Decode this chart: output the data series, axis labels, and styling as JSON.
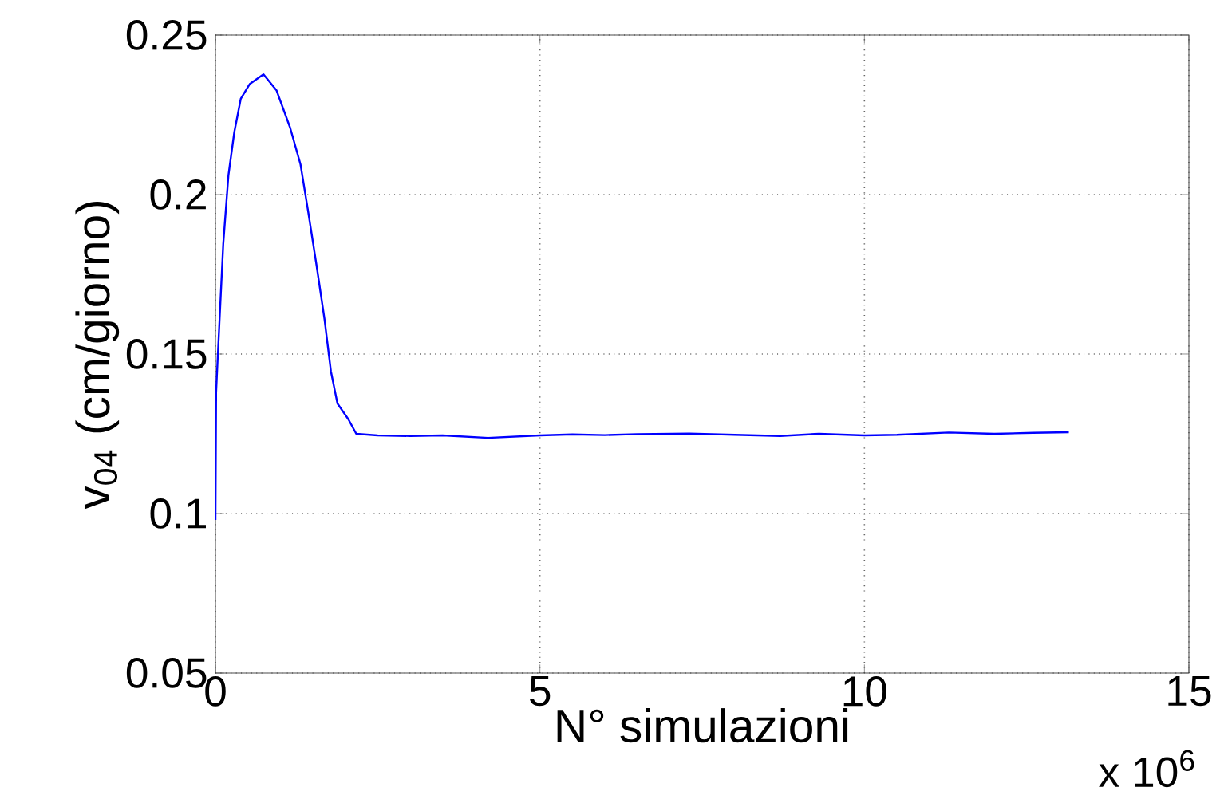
{
  "chart_data": {
    "type": "line",
    "xlabel": "N° simulazioni",
    "ylabel": "v$_{04}$ (cm/giorno)",
    "annotations": [
      "x 10$^{6}$"
    ],
    "xlim": [
      0,
      15
    ],
    "xticks": [
      0,
      5,
      10,
      15
    ],
    "ylim": [
      0.05,
      0.25
    ],
    "yticks": [
      0.05,
      0.1,
      0.15,
      0.2,
      0.25
    ],
    "grid": true,
    "line_style": "solid",
    "marker": "none",
    "series": [
      {
        "color": "#0000ff",
        "x": [
          0,
          0.01,
          0.04,
          0.12,
          0.2,
          0.29,
          0.39,
          0.53,
          0.74,
          0.94,
          1.15,
          1.31,
          1.43,
          1.56,
          1.68,
          1.78,
          1.88,
          2.05,
          2.17,
          2.5,
          3.0,
          3.5,
          4.2,
          5.0,
          5.5,
          6.0,
          6.5,
          7.3,
          8.0,
          8.7,
          9.3,
          10.0,
          10.5,
          11.3,
          12.0,
          12.6,
          13.15
        ],
        "values": [
          0.098,
          0.138,
          0.151,
          0.1845,
          0.206,
          0.2195,
          0.23,
          0.2347,
          0.2377,
          0.2327,
          0.221,
          0.2095,
          0.1945,
          0.1775,
          0.161,
          0.1445,
          0.1345,
          0.1295,
          0.125,
          0.1245,
          0.1243,
          0.1245,
          0.1237,
          0.1245,
          0.1248,
          0.1246,
          0.1249,
          0.1251,
          0.1247,
          0.1243,
          0.125,
          0.1245,
          0.1247,
          0.1254,
          0.125,
          0.1253,
          0.1255
        ]
      }
    ]
  }
}
